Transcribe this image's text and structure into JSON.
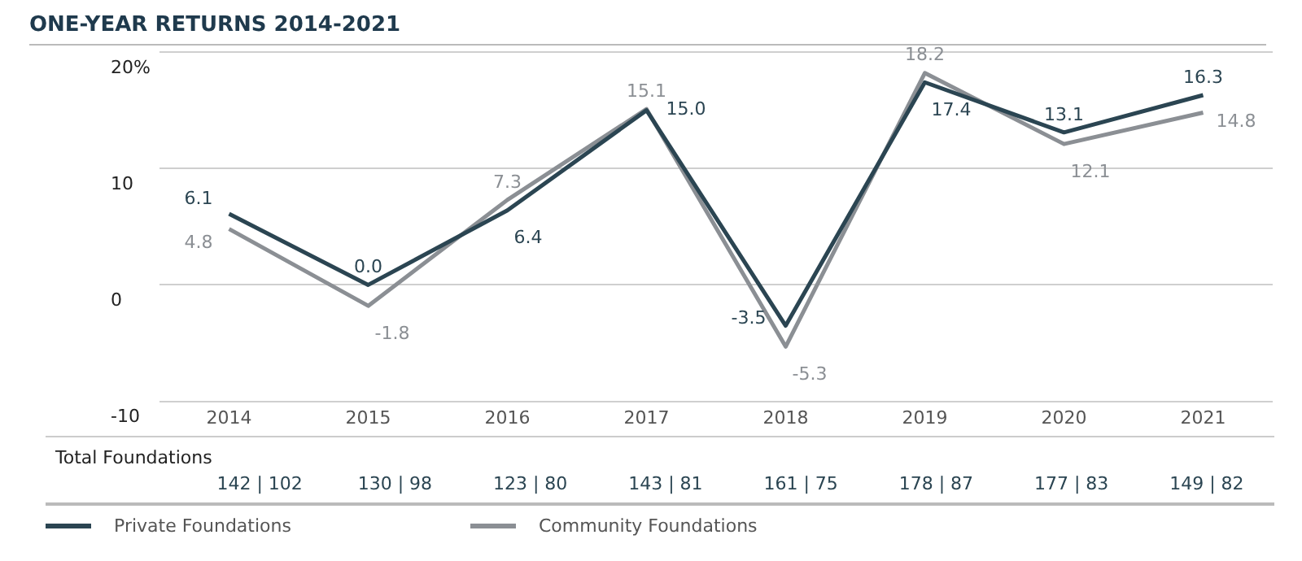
{
  "chart_data": {
    "type": "line",
    "title": "ONE-YEAR RETURNS 2014-2021",
    "categories": [
      "2014",
      "2015",
      "2016",
      "2017",
      "2018",
      "2019",
      "2020",
      "2021"
    ],
    "series": [
      {
        "name": "Private Foundations",
        "color": "#2b4552",
        "values": [
          6.1,
          0.0,
          6.4,
          15.0,
          -3.5,
          17.4,
          13.1,
          16.3
        ],
        "value_labels": [
          "6.1",
          "0.0",
          "6.4",
          "15.0",
          "-3.5",
          "17.4",
          "13.1",
          "16.3"
        ]
      },
      {
        "name": "Community Foundations",
        "color": "#8b8f94",
        "values": [
          4.8,
          -1.8,
          7.3,
          15.1,
          -5.3,
          18.2,
          12.1,
          14.8
        ],
        "value_labels": [
          "4.8",
          "-1.8",
          "7.3",
          "15.1",
          "-5.3",
          "18.2",
          "12.1",
          "14.8"
        ]
      }
    ],
    "ylim": [
      -10,
      20
    ],
    "yticks": [
      -10,
      0,
      10,
      {
        "value": 20,
        "label": "20%"
      }
    ],
    "grid": "y",
    "legend": "bottom",
    "marker": "none",
    "line_style": "solid",
    "annotations": [
      "Total Foundations",
      "142 | 102",
      "130 | 98",
      "123 | 80",
      "143 | 81",
      "161 | 75",
      "178 | 87",
      "177 | 83",
      "149 | 82"
    ]
  }
}
